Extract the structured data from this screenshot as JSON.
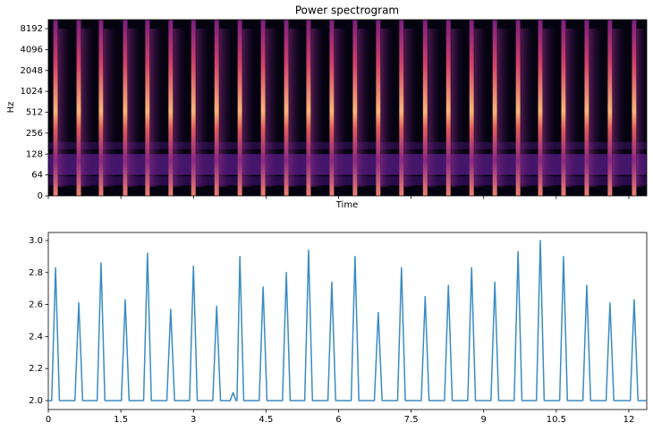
{
  "chart_data": [
    {
      "type": "spectrogram",
      "title": "Power spectrogram",
      "xlabel": "Time",
      "ylabel": "Hz",
      "xlim": [
        0,
        12.37
      ],
      "ylim": [
        0,
        11025
      ],
      "yticks": [
        0,
        64,
        128,
        256,
        512,
        1024,
        2048,
        4096,
        8192
      ]
    },
    {
      "type": "line",
      "xlim": [
        0,
        12.37
      ],
      "ylim": [
        1.944,
        3.05
      ],
      "xticks": [
        0,
        1.5,
        3,
        4.5,
        6,
        7.5,
        9,
        10.5,
        12
      ],
      "yticks": [
        {
          "value": 2,
          "label": "2.0"
        },
        {
          "value": 2.2,
          "label": "2.2"
        },
        {
          "value": 2.4,
          "label": "2.4"
        },
        {
          "value": 2.6,
          "label": "2.6"
        },
        {
          "value": 2.8,
          "label": "2.8"
        },
        {
          "value": 3,
          "label": "3.0"
        }
      ],
      "color": "#3b8bc2",
      "x": [
        0,
        0.07,
        0.15,
        0.23,
        0.55,
        0.63,
        0.71,
        1.01,
        1.09,
        1.17,
        1.51,
        1.59,
        1.67,
        1.97,
        2.05,
        2.13,
        2.45,
        2.53,
        2.61,
        2.92,
        3.0,
        3.08,
        3.4,
        3.48,
        3.56,
        3.76,
        3.82,
        3.88,
        3.9,
        3.96,
        4.04,
        4.36,
        4.44,
        4.52,
        4.84,
        4.92,
        5.0,
        5.3,
        5.38,
        5.46,
        5.78,
        5.86,
        5.94,
        6.26,
        6.34,
        6.42,
        6.74,
        6.82,
        6.9,
        7.22,
        7.3,
        7.38,
        7.71,
        7.79,
        7.87,
        8.19,
        8.27,
        8.35,
        8.67,
        8.75,
        8.83,
        9.15,
        9.23,
        9.31,
        9.63,
        9.71,
        9.79,
        10.09,
        10.17,
        10.25,
        10.57,
        10.65,
        10.73,
        11.05,
        11.13,
        11.21,
        11.53,
        11.61,
        11.69,
        12.03,
        12.11,
        12.19,
        12.37
      ],
      "values": [
        2.0,
        2.0,
        2.83,
        2.0,
        2.0,
        2.61,
        2.0,
        2.0,
        2.86,
        2.0,
        2.0,
        2.63,
        2.0,
        2.0,
        2.92,
        2.0,
        2.0,
        2.57,
        2.0,
        2.0,
        2.84,
        2.0,
        2.0,
        2.59,
        2.0,
        2.0,
        2.05,
        2.0,
        2.0,
        2.9,
        2.0,
        2.0,
        2.71,
        2.0,
        2.0,
        2.8,
        2.0,
        2.0,
        2.94,
        2.0,
        2.0,
        2.74,
        2.0,
        2.0,
        2.9,
        2.0,
        2.0,
        2.55,
        2.0,
        2.0,
        2.83,
        2.0,
        2.0,
        2.65,
        2.0,
        2.0,
        2.72,
        2.0,
        2.0,
        2.83,
        2.0,
        2.0,
        2.74,
        2.0,
        2.0,
        2.93,
        2.0,
        2.0,
        3.0,
        2.0,
        2.0,
        2.9,
        2.0,
        2.0,
        2.72,
        2.0,
        2.0,
        2.61,
        2.0,
        2.0,
        2.63,
        2.0,
        2.0
      ]
    }
  ]
}
